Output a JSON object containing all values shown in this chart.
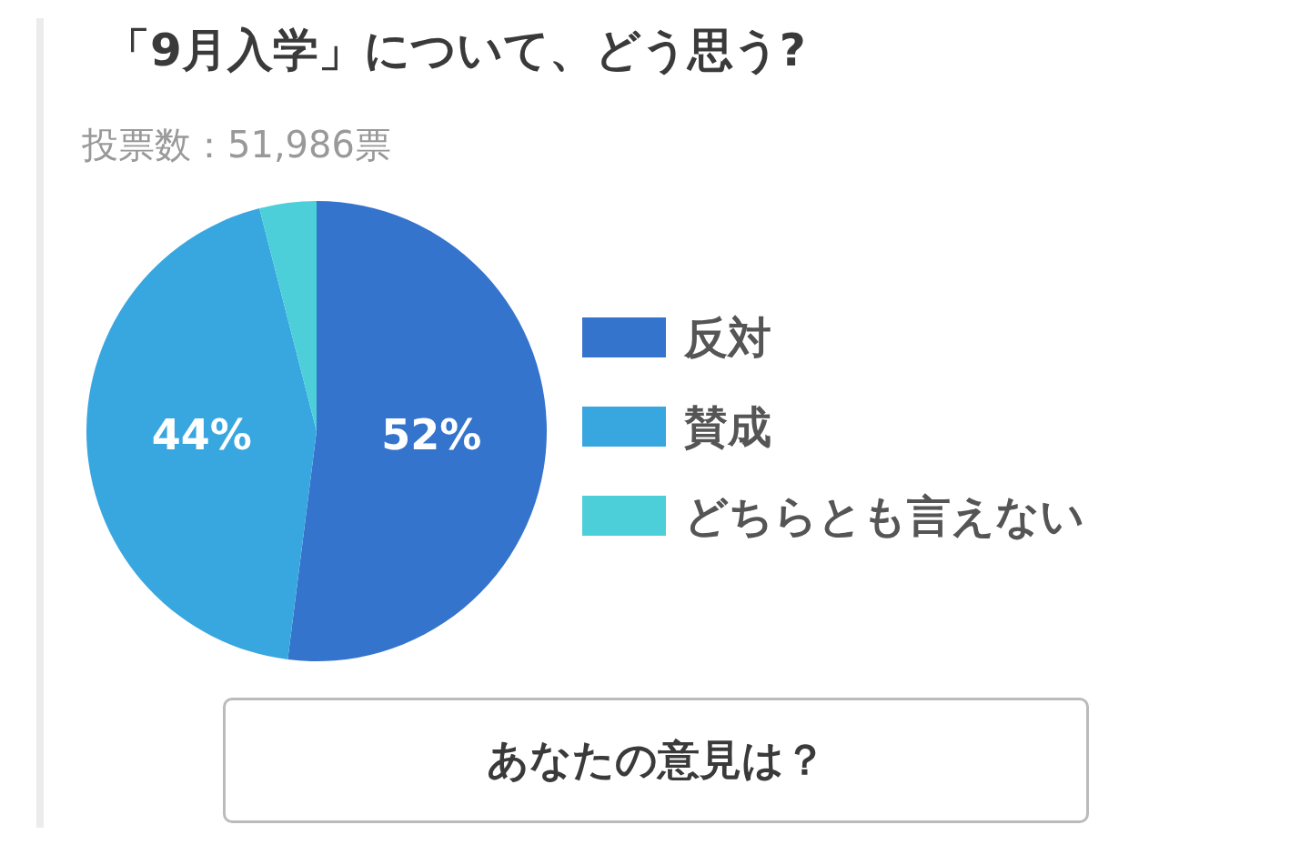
{
  "chart_data": {
    "type": "pie",
    "title": "「9月入学」について、どう思う?",
    "subtitle": "投票数：51,986票",
    "categories": [
      "反対",
      "賛成",
      "どちらとも言えない"
    ],
    "values": [
      52,
      44,
      4
    ],
    "colors": [
      "#3474cc",
      "#38a7e0",
      "#4ccfd8"
    ],
    "value_labels": [
      "52%",
      "44%",
      null
    ],
    "legend": "right",
    "annotations": [
      "あなたの意見は？"
    ]
  }
}
